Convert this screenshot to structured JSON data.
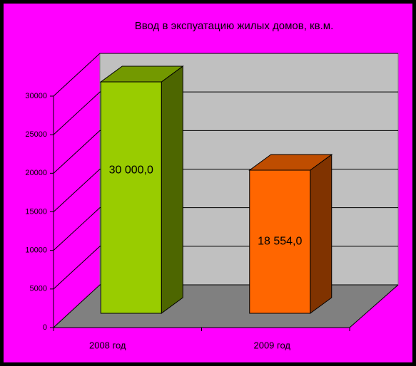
{
  "chart_data": {
    "type": "bar3d",
    "title": "Ввод в экспуатацию жилых домов, кв.м.",
    "categories": [
      "2008 год",
      "2009 год"
    ],
    "values": [
      30000,
      18554
    ],
    "value_labels": [
      "30 000,0",
      "18 554,0"
    ],
    "colors": [
      "#99cc00",
      "#ff6600"
    ],
    "ylim": [
      0,
      30000
    ],
    "yticks": [
      0,
      5000,
      10000,
      15000,
      20000,
      25000,
      30000
    ],
    "grid": true
  }
}
